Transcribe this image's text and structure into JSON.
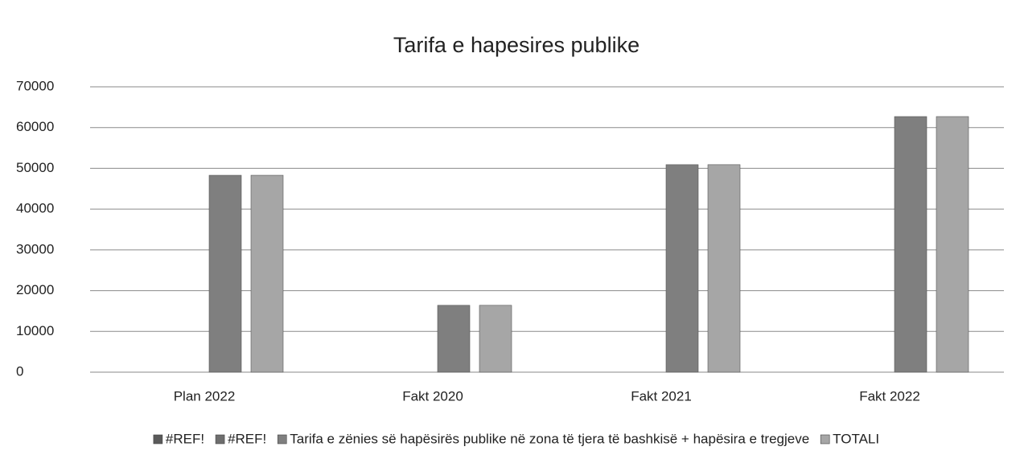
{
  "chart_data": {
    "type": "bar",
    "title": "Tarifa e hapesires publike",
    "categories": [
      "Plan 2022",
      "Fakt 2020",
      "Fakt 2021",
      "Fakt 2022"
    ],
    "series": [
      {
        "name": "#REF!",
        "color": "#5a5a5a",
        "values": [
          null,
          null,
          null,
          null
        ]
      },
      {
        "name": "#REF!",
        "color": "#6e6e6e",
        "values": [
          null,
          null,
          null,
          null
        ]
      },
      {
        "name": "Tarifa e zënies së hapësirës publike në zona të tjera të bashkisë + hapësira e tregjeve",
        "color": "#7f7f7f",
        "values": [
          48300,
          16400,
          50900,
          62700
        ]
      },
      {
        "name": "TOTALI",
        "color": "#a6a6a6",
        "values": [
          48300,
          16400,
          50900,
          62700
        ]
      }
    ],
    "ylim": [
      0,
      70000
    ],
    "yticks": [
      0,
      10000,
      20000,
      30000,
      40000,
      50000,
      60000,
      70000
    ],
    "grid": true
  }
}
